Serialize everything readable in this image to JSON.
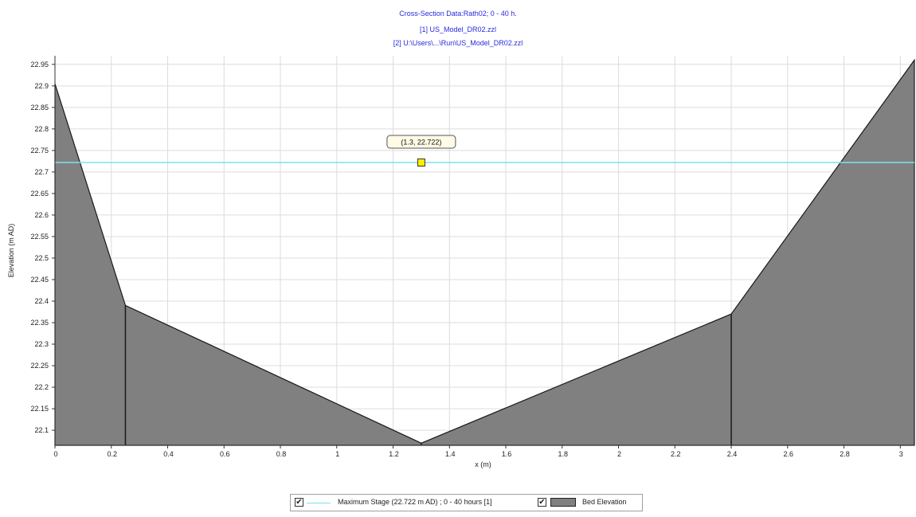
{
  "chart_data": {
    "type": "area",
    "title_lines": [
      "Cross-Section Data:Rath02; 0 - 40 h.",
      "[1] US_Model_DR02.zzl",
      "[2] U:\\Users\\...\\Run\\US_Model_DR02.zzl"
    ],
    "xlabel": "x (m)",
    "ylabel": "Elevation (m AD)",
    "xlim": [
      0,
      3.05
    ],
    "ylim": [
      22.065,
      22.97
    ],
    "x_ticks": [
      "0",
      "0.2",
      "0.4",
      "0.6",
      "0.8",
      "1",
      "1.2",
      "1.4",
      "1.6",
      "1.8",
      "2",
      "2.2",
      "2.4",
      "2.6",
      "2.8",
      "3"
    ],
    "y_ticks": [
      "22.1",
      "22.15",
      "22.2",
      "22.25",
      "22.3",
      "22.35",
      "22.4",
      "22.45",
      "22.5",
      "22.55",
      "22.6",
      "22.65",
      "22.7",
      "22.75",
      "22.8",
      "22.85",
      "22.9",
      "22.95"
    ],
    "grid": true,
    "series": [
      {
        "name": "Bed Elevation",
        "kind": "area",
        "x": [
          0,
          0.25,
          1.3,
          2.4,
          3.05
        ],
        "y": [
          22.905,
          22.39,
          22.07,
          22.37,
          22.96
        ],
        "color": "#808080",
        "vertical_lines_at": [
          0.25,
          1.3,
          2.4
        ]
      },
      {
        "name": "Maximum Stage (22.722 m AD) ; 0 - 40 hours [1]",
        "kind": "line",
        "x": [
          0,
          3.05
        ],
        "y": [
          22.722,
          22.722
        ],
        "color": "#7fe0f0"
      }
    ],
    "marker": {
      "x": 1.3,
      "y": 22.722,
      "label": "(1.3, 22.722)",
      "color": "#ffee00"
    },
    "legend": {
      "placement": "bottom-center",
      "entries": [
        {
          "label": "Maximum Stage (22.722 m AD) ; 0 - 40 hours [1]",
          "checked": true,
          "symbol": "line"
        },
        {
          "label": "Bed Elevation",
          "checked": true,
          "symbol": "swatch"
        }
      ]
    }
  }
}
